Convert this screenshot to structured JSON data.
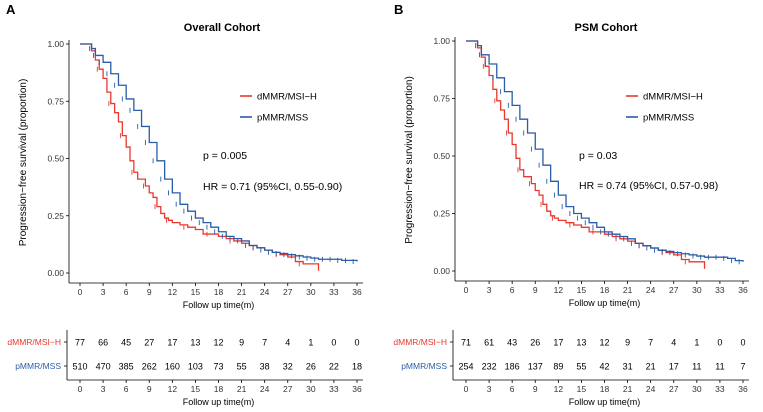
{
  "chart_data": [
    {
      "type": "line",
      "panel_label": "A",
      "title": "Overall Cohort",
      "xlabel": "Follow up time(m)",
      "ylabel": "Progression−free survival (proportion)",
      "xlim": [
        0,
        36
      ],
      "ylim": [
        0,
        1
      ],
      "x_ticks": [
        0,
        3,
        6,
        9,
        12,
        15,
        18,
        21,
        24,
        27,
        30,
        33,
        36
      ],
      "y_ticks": [
        "0.00",
        "0.25",
        "0.50",
        "0.75",
        "1.00"
      ],
      "legend": [
        "dMMR/MSI−H",
        "pMMR/MSS"
      ],
      "annotations": {
        "p_value": "p = 0.005",
        "hr": "HR = 0.71 (95%CI, 0.55-0.90)"
      },
      "series": [
        {
          "name": "dMMR/MSI−H",
          "color": "#e8382f",
          "points": [
            [
              0,
              1
            ],
            [
              1,
              1
            ],
            [
              1.5,
              0.97
            ],
            [
              2,
              0.93
            ],
            [
              2.5,
              0.89
            ],
            [
              3,
              0.85
            ],
            [
              3.5,
              0.79
            ],
            [
              4,
              0.74
            ],
            [
              4.5,
              0.7
            ],
            [
              5,
              0.66
            ],
            [
              5.5,
              0.6
            ],
            [
              6,
              0.55
            ],
            [
              6.5,
              0.49
            ],
            [
              7,
              0.44
            ],
            [
              7.5,
              0.41
            ],
            [
              8,
              0.41
            ],
            [
              8.5,
              0.38
            ],
            [
              9,
              0.35
            ],
            [
              9.5,
              0.33
            ],
            [
              10,
              0.29
            ],
            [
              10.5,
              0.26
            ],
            [
              11,
              0.24
            ],
            [
              11.5,
              0.23
            ],
            [
              12,
              0.22
            ],
            [
              13,
              0.21
            ],
            [
              14,
              0.2
            ],
            [
              15,
              0.19
            ],
            [
              16,
              0.17
            ],
            [
              17,
              0.17
            ],
            [
              18,
              0.16
            ],
            [
              19,
              0.15
            ],
            [
              20,
              0.14
            ],
            [
              21,
              0.13
            ],
            [
              22,
              0.12
            ],
            [
              23,
              0.11
            ],
            [
              24,
              0.1
            ],
            [
              25,
              0.09
            ],
            [
              26,
              0.08
            ],
            [
              27,
              0.07
            ],
            [
              28,
              0.05
            ],
            [
              29,
              0.04
            ],
            [
              30,
              0.04
            ],
            [
              31,
              0.01
            ]
          ]
        },
        {
          "name": "pMMR/MSS",
          "color": "#2a5ca8",
          "points": [
            [
              0,
              1
            ],
            [
              1,
              1
            ],
            [
              1.5,
              0.98
            ],
            [
              2,
              0.95
            ],
            [
              3,
              0.92
            ],
            [
              4,
              0.87
            ],
            [
              5,
              0.82
            ],
            [
              6,
              0.76
            ],
            [
              7,
              0.71
            ],
            [
              8,
              0.64
            ],
            [
              9,
              0.57
            ],
            [
              10,
              0.49
            ],
            [
              11,
              0.41
            ],
            [
              12,
              0.35
            ],
            [
              13,
              0.3
            ],
            [
              14,
              0.27
            ],
            [
              15,
              0.24
            ],
            [
              16,
              0.22
            ],
            [
              17,
              0.2
            ],
            [
              18,
              0.18
            ],
            [
              19,
              0.16
            ],
            [
              20,
              0.15
            ],
            [
              21,
              0.14
            ],
            [
              22,
              0.12
            ],
            [
              23,
              0.11
            ],
            [
              24,
              0.1
            ],
            [
              25,
              0.09
            ],
            [
              26,
              0.085
            ],
            [
              27,
              0.08
            ],
            [
              28,
              0.075
            ],
            [
              29,
              0.07
            ],
            [
              30,
              0.065
            ],
            [
              31,
              0.06
            ],
            [
              32,
              0.06
            ],
            [
              33,
              0.06
            ],
            [
              34,
              0.055
            ],
            [
              35,
              0.055
            ],
            [
              36,
              0.05
            ]
          ]
        }
      ],
      "risk_table": {
        "rows": [
          {
            "name": "dMMR/MSI−H",
            "color": "#e8382f",
            "values": [
              "77",
              "66",
              "45",
              "27",
              "17",
              "13",
              "12",
              "9",
              "7",
              "4",
              "1",
              "0",
              "0"
            ]
          },
          {
            "name": "pMMR/MSS",
            "color": "#2a5ca8",
            "values": [
              "510",
              "470",
              "385",
              "262",
              "160",
              "103",
              "73",
              "55",
              "38",
              "32",
              "26",
              "22",
              "18"
            ]
          }
        ],
        "x_ticks": [
          0,
          3,
          6,
          9,
          12,
          15,
          18,
          21,
          24,
          27,
          30,
          33,
          36
        ],
        "xlabel": "Follow up time(m)"
      }
    },
    {
      "type": "line",
      "panel_label": "B",
      "title": "PSM Cohort",
      "xlabel": "Follow up time(m)",
      "ylabel": "Progression−free survival (proportion)",
      "xlim": [
        0,
        36
      ],
      "ylim": [
        0,
        1
      ],
      "x_ticks": [
        0,
        3,
        6,
        9,
        12,
        15,
        18,
        21,
        24,
        27,
        30,
        33,
        36
      ],
      "y_ticks": [
        "0.00",
        "0.25",
        "0.50",
        "0.75",
        "1.00"
      ],
      "legend": [
        "dMMR/MSI−H",
        "pMMR/MSS"
      ],
      "annotations": {
        "p_value": "p = 0.03",
        "hr": "HR = 0.74 (95%CI, 0.57-0.98)"
      },
      "series": [
        {
          "name": "dMMR/MSI−H",
          "color": "#e8382f",
          "points": [
            [
              0,
              1
            ],
            [
              1,
              1
            ],
            [
              1.5,
              0.97
            ],
            [
              2,
              0.93
            ],
            [
              2.5,
              0.89
            ],
            [
              3,
              0.85
            ],
            [
              3.5,
              0.79
            ],
            [
              4,
              0.74
            ],
            [
              4.5,
              0.7
            ],
            [
              5,
              0.66
            ],
            [
              5.5,
              0.6
            ],
            [
              6,
              0.55
            ],
            [
              6.5,
              0.49
            ],
            [
              7,
              0.44
            ],
            [
              7.5,
              0.41
            ],
            [
              8,
              0.41
            ],
            [
              8.5,
              0.38
            ],
            [
              9,
              0.35
            ],
            [
              9.5,
              0.33
            ],
            [
              10,
              0.29
            ],
            [
              10.5,
              0.26
            ],
            [
              11,
              0.24
            ],
            [
              11.5,
              0.23
            ],
            [
              12,
              0.22
            ],
            [
              13,
              0.21
            ],
            [
              14,
              0.2
            ],
            [
              15,
              0.19
            ],
            [
              16,
              0.17
            ],
            [
              17,
              0.17
            ],
            [
              18,
              0.16
            ],
            [
              19,
              0.15
            ],
            [
              20,
              0.14
            ],
            [
              21,
              0.13
            ],
            [
              22,
              0.12
            ],
            [
              23,
              0.11
            ],
            [
              24,
              0.1
            ],
            [
              25,
              0.09
            ],
            [
              26,
              0.08
            ],
            [
              27,
              0.07
            ],
            [
              28,
              0.05
            ],
            [
              29,
              0.04
            ],
            [
              30,
              0.04
            ],
            [
              31,
              0.01
            ]
          ]
        },
        {
          "name": "pMMR/MSS",
          "color": "#2a5ca8",
          "points": [
            [
              0,
              1
            ],
            [
              1,
              1
            ],
            [
              1.5,
              0.98
            ],
            [
              2,
              0.94
            ],
            [
              3,
              0.9
            ],
            [
              4,
              0.84
            ],
            [
              5,
              0.78
            ],
            [
              6,
              0.72
            ],
            [
              7,
              0.66
            ],
            [
              8,
              0.6
            ],
            [
              9,
              0.53
            ],
            [
              10,
              0.46
            ],
            [
              11,
              0.39
            ],
            [
              12,
              0.33
            ],
            [
              13,
              0.28
            ],
            [
              14,
              0.25
            ],
            [
              15,
              0.23
            ],
            [
              16,
              0.21
            ],
            [
              17,
              0.19
            ],
            [
              18,
              0.17
            ],
            [
              19,
              0.16
            ],
            [
              20,
              0.15
            ],
            [
              21,
              0.14
            ],
            [
              22,
              0.12
            ],
            [
              23,
              0.11
            ],
            [
              24,
              0.1
            ],
            [
              25,
              0.09
            ],
            [
              26,
              0.085
            ],
            [
              27,
              0.08
            ],
            [
              28,
              0.075
            ],
            [
              29,
              0.07
            ],
            [
              30,
              0.065
            ],
            [
              31,
              0.06
            ],
            [
              32,
              0.06
            ],
            [
              33,
              0.06
            ],
            [
              34,
              0.055
            ],
            [
              35,
              0.045
            ],
            [
              36,
              0.04
            ]
          ]
        }
      ],
      "risk_table": {
        "rows": [
          {
            "name": "dMMR/MSI−H",
            "color": "#e8382f",
            "values": [
              "71",
              "61",
              "43",
              "26",
              "17",
              "13",
              "12",
              "9",
              "7",
              "4",
              "1",
              "0",
              "0"
            ]
          },
          {
            "name": "pMMR/MSS",
            "color": "#2a5ca8",
            "values": [
              "254",
              "232",
              "186",
              "137",
              "89",
              "55",
              "42",
              "31",
              "21",
              "17",
              "11",
              "11",
              "7"
            ]
          }
        ],
        "x_ticks": [
          0,
          3,
          6,
          9,
          12,
          15,
          18,
          21,
          24,
          27,
          30,
          33,
          36
        ],
        "xlabel": "Follow up time(m)"
      }
    }
  ]
}
